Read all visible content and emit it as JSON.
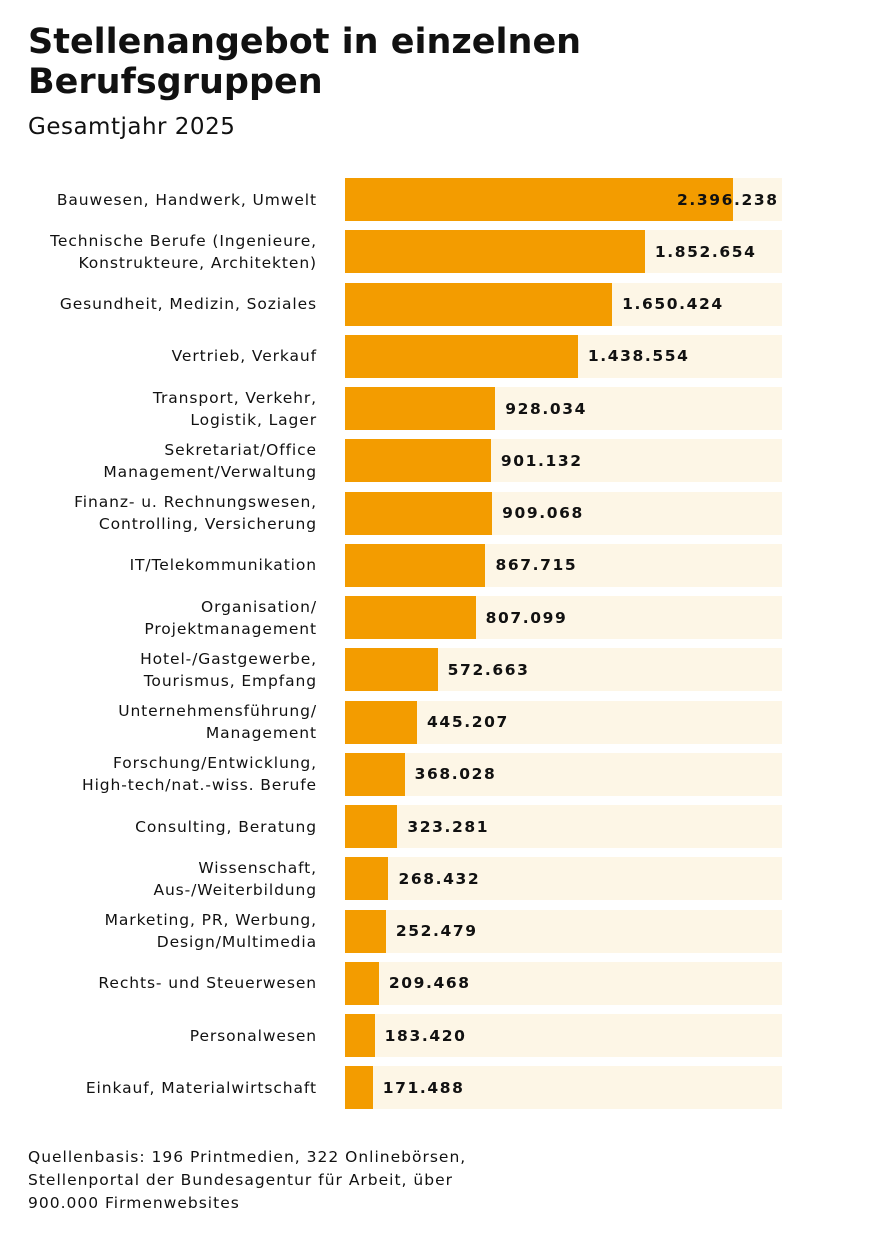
{
  "chart_data": {
    "type": "hbar",
    "title": "Stellenangebot in einzelnen Berufsgruppen",
    "subtitle": "Gesamtjahr 2025",
    "categories": [
      "Bauwesen, Handwerk, Umwelt",
      "Technische Berufe (Ingenieure,\nKonstrukteure, Architekten)",
      "Gesundheit, Medizin, Soziales",
      "Vertrieb, Verkauf",
      "Transport, Verkehr,\nLogistik, Lager",
      "Sekretariat/Office\nManagement/Verwaltung",
      "Finanz- u. Rechnungswesen,\nControlling, Versicherung",
      "IT/Telekommunikation",
      "Organisation/\nProjektmanagement",
      "Hotel-/Gastgewerbe,\nTourismus, Empfang",
      "Unternehmensführung/\nManagement",
      "Forschung/Entwicklung,\nHigh-tech/nat.-wiss. Berufe",
      "Consulting, Beratung",
      "Wissenschaft,\nAus-/Weiterbildung",
      "Marketing, PR, Werbung,\nDesign/Multimedia",
      "Rechts- und Steuerwesen",
      "Personalwesen",
      "Einkauf, Materialwirtschaft"
    ],
    "values": [
      2396238,
      1852654,
      1650424,
      1438554,
      928034,
      901132,
      909068,
      867715,
      807099,
      572663,
      445207,
      368028,
      323281,
      268432,
      252479,
      209468,
      183420,
      171488
    ],
    "value_labels": [
      "2.396.238",
      "1.852.654",
      "1.650.424",
      "1.438.554",
      "928.034",
      "901.132",
      "909.068",
      "867.715",
      "807.099",
      "572.663",
      "445.207",
      "368.028",
      "323.281",
      "268.432",
      "252.479",
      "209.468",
      "183.420",
      "171.488"
    ],
    "xlim": [
      0,
      2700000
    ],
    "color": "#f39c00",
    "track_color": "#fdf6e6",
    "note": "Quellenbasis: 196 Printmedien, 322 Onlinebörsen,\nStellenportal der Bundesagentur für Arbeit, über\n900.000 Firmenwebsites"
  }
}
